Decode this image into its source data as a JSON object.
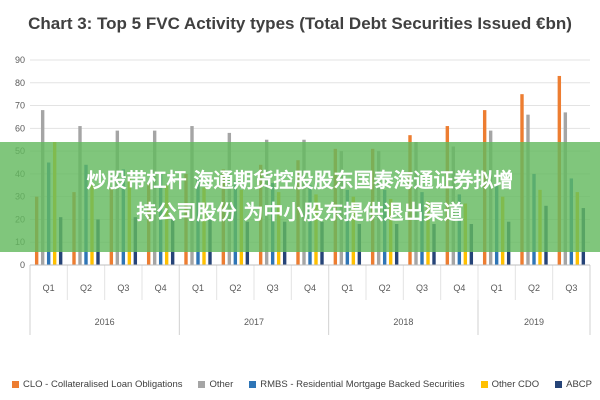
{
  "chart_data": {
    "type": "bar",
    "title": "Chart 3: Top 5 FVC Activity types (Total Debt Securities Issued €bn)",
    "ylim": [
      0,
      90
    ],
    "yticks": [
      0,
      10,
      20,
      30,
      40,
      50,
      60,
      70,
      80,
      90
    ],
    "grid": true,
    "legend_position": "bottom",
    "categories": [
      "Q1",
      "Q2",
      "Q3",
      "Q4",
      "Q1",
      "Q2",
      "Q3",
      "Q4",
      "Q1",
      "Q2",
      "Q3",
      "Q4",
      "Q1",
      "Q2",
      "Q3"
    ],
    "groups": [
      {
        "label": "2016",
        "span": 4
      },
      {
        "label": "2017",
        "span": 4
      },
      {
        "label": "2018",
        "span": 4
      },
      {
        "label": "2019",
        "span": 3
      }
    ],
    "series": [
      {
        "name": "CLO - Collateralised Loan Obligations",
        "color": "#ED7D31",
        "values": [
          30,
          32,
          34,
          36,
          40,
          42,
          44,
          46,
          51,
          51,
          57,
          61,
          68,
          75,
          83
        ]
      },
      {
        "name": "Other",
        "color": "#A5A5A5",
        "values": [
          68,
          61,
          59,
          59,
          61,
          58,
          55,
          55,
          50,
          50,
          54,
          52,
          59,
          66,
          67
        ]
      },
      {
        "name": "RMBS - Residential Mortgage Backed Securities",
        "color": "#2E75B6",
        "values": [
          45,
          44,
          42,
          40,
          38,
          37,
          36,
          35,
          33,
          33,
          32,
          31,
          35,
          40,
          38
        ]
      },
      {
        "name": "Other CDO",
        "color": "#FFC000",
        "values": [
          54,
          36,
          38,
          35,
          34,
          33,
          32,
          31,
          30,
          29,
          28,
          27,
          30,
          33,
          32
        ]
      },
      {
        "name": "ABCP",
        "color": "#264478",
        "values": [
          21,
          20,
          21,
          20,
          20,
          19,
          19,
          19,
          18,
          18,
          18,
          18,
          19,
          26,
          25
        ]
      }
    ]
  },
  "overlay": {
    "line1": "炒股带杠杆 海通期货控股股东国泰海通证券拟增",
    "line2": "持公司股份 为中小股东提供退出渠道"
  }
}
